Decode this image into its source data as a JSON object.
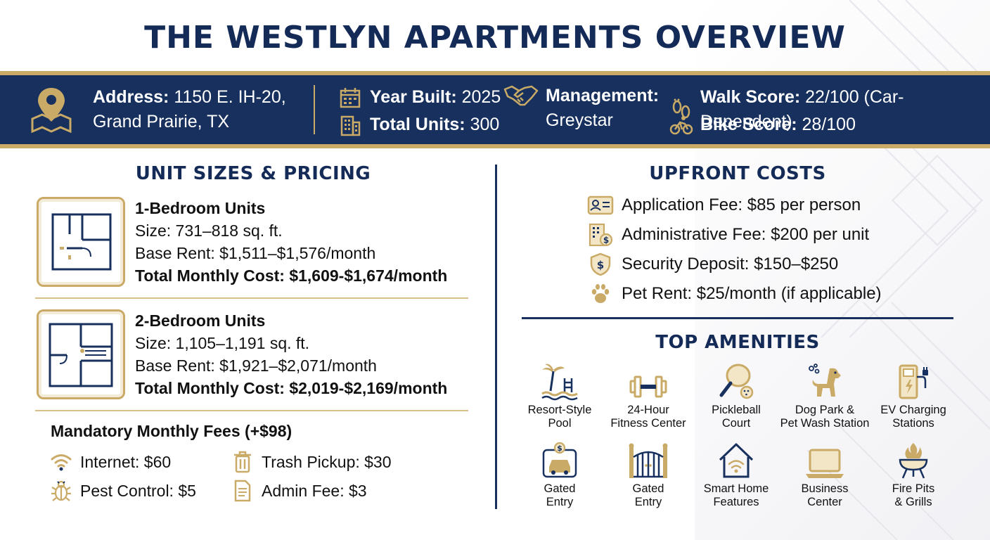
{
  "title": "THE WESTLYN APARTMENTS OVERVIEW",
  "colors": {
    "navy": "#17305e",
    "gold": "#c9aa66"
  },
  "banner": {
    "address_label": "Address:",
    "address_line1": "1150 E. IH-20,",
    "address_line2": "Grand Prairie, TX",
    "year_label": "Year Built:",
    "year_value": "2025",
    "units_label": "Total Units:",
    "units_value": "300",
    "mgmt_label": "Management:",
    "mgmt_value": "Greystar",
    "walk_label": "Walk Score:",
    "walk_value": "22/100 (Car-Dependent)",
    "bike_label": "Bike Score:",
    "bike_value": "28/100",
    "icons": [
      "map-pin-icon",
      "calendar-icon",
      "building-icon",
      "handshake-icon",
      "footprints-icon",
      "bicycle-icon"
    ]
  },
  "units_section": {
    "title": "UNIT SIZES & PRICING",
    "units": [
      {
        "name": "1-Bedroom Units",
        "size": "Size: 731–818 sq. ft.",
        "rent": "Base Rent: $1,511–$1,576/month",
        "total": "Total Monthly Cost: $1,609-$1,674/month"
      },
      {
        "name": "2-Bedroom Units",
        "size": "Size: 1,105–1,191 sq. ft.",
        "rent": "Base Rent: $1,921–$2,071/month",
        "total": "Total Monthly Cost: $2,019-$2,169/month"
      }
    ],
    "fees_title": "Mandatory Monthly Fees (+$98)",
    "fees": [
      {
        "label": "Internet: $60",
        "icon": "wifi-icon"
      },
      {
        "label": "Trash Pickup: $30",
        "icon": "trash-icon"
      },
      {
        "label": "Pest Control: $5",
        "icon": "bug-icon"
      },
      {
        "label": "Admin Fee: $3",
        "icon": "document-icon"
      }
    ]
  },
  "upfront": {
    "title": "UPFRONT COSTS",
    "items": [
      {
        "label": "Application Fee: $85 per person",
        "icon": "id-card-icon"
      },
      {
        "label": "Administrative Fee: $200 per unit",
        "icon": "building-dollar-icon"
      },
      {
        "label": "Security Deposit: $150–$250",
        "icon": "shield-dollar-icon"
      },
      {
        "label": "Pet Rent: $25/month (if applicable)",
        "icon": "paw-icon"
      }
    ]
  },
  "amenities": {
    "title": "TOP AMENITIES",
    "items": [
      {
        "line1": "Resort-Style",
        "line2": "Pool",
        "icon": "pool-icon"
      },
      {
        "line1": "24-Hour",
        "line2": "Fitness Center",
        "icon": "dumbbell-icon"
      },
      {
        "line1": "Pickleball",
        "line2": "Court",
        "icon": "paddle-icon"
      },
      {
        "line1": "Dog Park &",
        "line2": "Pet Wash Station",
        "icon": "dog-icon"
      },
      {
        "line1": "EV Charging",
        "line2": "Stations",
        "icon": "ev-charger-icon"
      },
      {
        "line1": "Gated",
        "line2": "Entry",
        "icon": "car-gate-icon"
      },
      {
        "line1": "Gated",
        "line2": "Entry",
        "icon": "gate-icon"
      },
      {
        "line1": "Smart Home",
        "line2": "Features",
        "icon": "smart-home-icon"
      },
      {
        "line1": "Business",
        "line2": "Center",
        "icon": "laptop-icon"
      },
      {
        "line1": "Fire Pits",
        "line2": "& Grills",
        "icon": "grill-icon"
      }
    ]
  }
}
